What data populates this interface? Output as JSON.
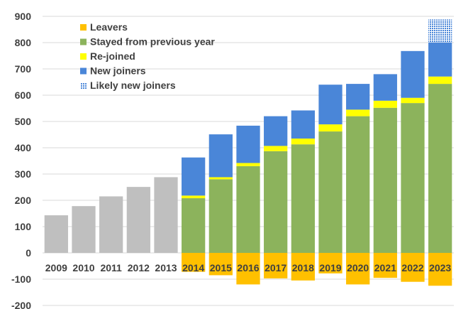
{
  "chart_data": {
    "type": "bar",
    "stacked": true,
    "categories": [
      "2009",
      "2010",
      "2011",
      "2012",
      "2013",
      "2014",
      "2015",
      "2016",
      "2017",
      "2018",
      "2019",
      "2020",
      "2021",
      "2022",
      "2023"
    ],
    "ylim": [
      -200,
      900
    ],
    "yticks": [
      900,
      800,
      700,
      600,
      500,
      400,
      300,
      200,
      100,
      0,
      -100,
      -200
    ],
    "ytick_labels": [
      "900",
      "800",
      "700",
      "600",
      "500",
      "400",
      "300",
      "200",
      "100",
      "0",
      "-100",
      "-200"
    ],
    "grid": "horizontal",
    "legend_position": "top-left",
    "totals_before_breakdown": {
      "categories": [
        "2009",
        "2010",
        "2011",
        "2012",
        "2013"
      ],
      "values": [
        143,
        178,
        215,
        251,
        288
      ],
      "color": "#bfbfbf"
    },
    "series": [
      {
        "name": "Leavers",
        "color": "#ffc000",
        "pattern": "solid",
        "values": [
          null,
          null,
          null,
          null,
          null,
          -72,
          -85,
          -120,
          -97,
          -105,
          -78,
          -120,
          -95,
          -110,
          -125
        ]
      },
      {
        "name": "Stayed from previous year",
        "color": "#8cb35c",
        "pattern": "solid",
        "values": [
          null,
          null,
          null,
          null,
          null,
          208,
          280,
          330,
          387,
          413,
          462,
          520,
          552,
          570,
          643
        ]
      },
      {
        "name": "Re-joined",
        "color": "#ffff00",
        "pattern": "solid",
        "values": [
          null,
          null,
          null,
          null,
          null,
          10,
          8,
          12,
          20,
          22,
          27,
          25,
          27,
          20,
          28
        ]
      },
      {
        "name": "New joiners",
        "color": "#4a86d8",
        "pattern": "solid",
        "values": [
          null,
          null,
          null,
          null,
          null,
          145,
          163,
          142,
          113,
          107,
          151,
          98,
          101,
          178,
          130
        ]
      },
      {
        "name": "Likely new joiners",
        "color": "#4a86d8",
        "pattern": "dotted",
        "values": [
          null,
          null,
          null,
          null,
          null,
          0,
          0,
          0,
          0,
          0,
          0,
          0,
          0,
          0,
          87
        ]
      }
    ],
    "highlighted_x_labels": [
      "2014",
      "2015",
      "2016",
      "2017",
      "2018",
      "2019",
      "2020",
      "2021",
      "2022",
      "2023"
    ],
    "highlight_color": "#ffc000"
  }
}
